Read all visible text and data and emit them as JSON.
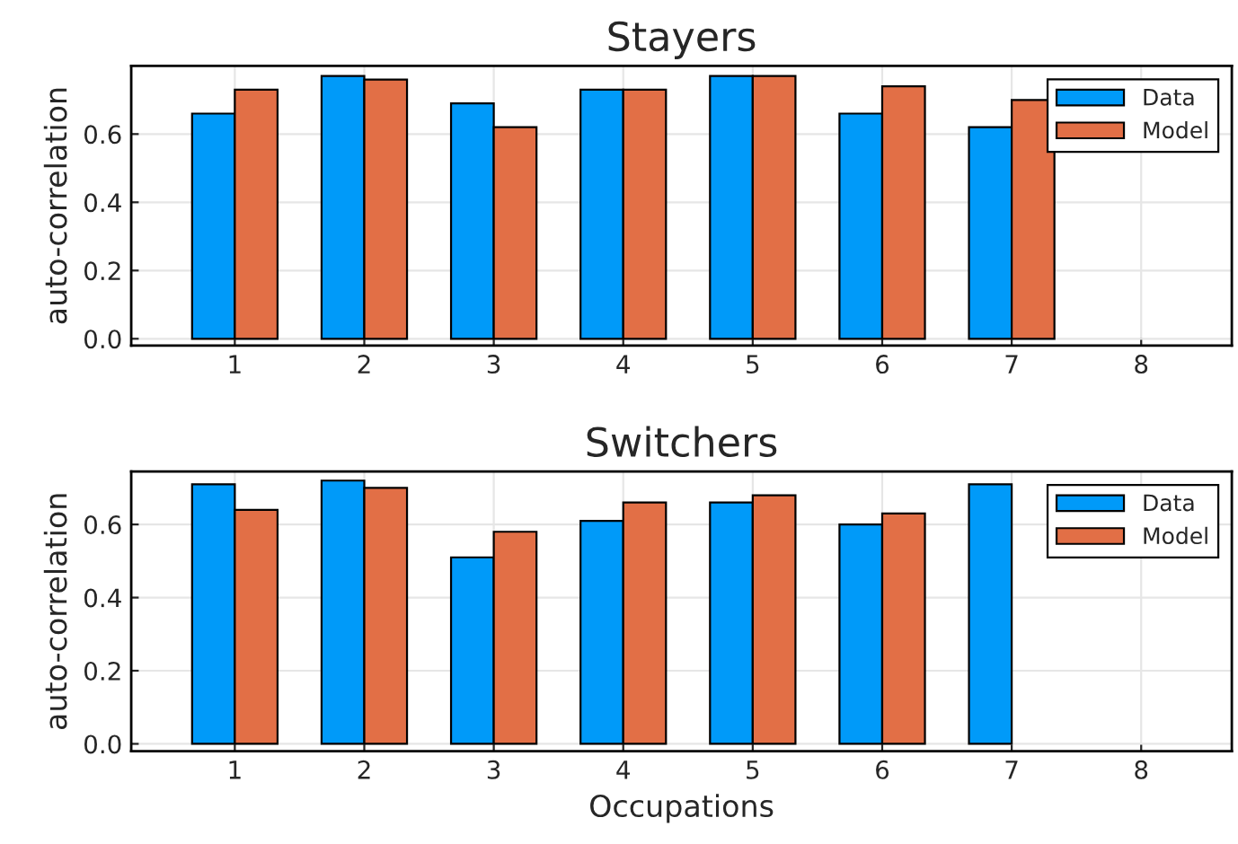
{
  "chart_data": [
    {
      "type": "bar",
      "title": "Stayers",
      "ylabel": "auto-correlation",
      "categories": [
        "1",
        "2",
        "3",
        "4",
        "5",
        "6",
        "7",
        "8"
      ],
      "series": [
        {
          "name": "Data",
          "color": "#009af9",
          "values": [
            0.66,
            0.77,
            0.69,
            0.73,
            0.77,
            0.66,
            0.62,
            null
          ]
        },
        {
          "name": "Model",
          "color": "#e26f46",
          "values": [
            0.73,
            0.76,
            0.62,
            0.73,
            0.77,
            0.74,
            0.7,
            null
          ]
        }
      ],
      "ylim": [
        -0.02,
        0.8
      ],
      "yticks": [
        {
          "value": 0,
          "label": "0.0"
        },
        0.2,
        0.4,
        0.6
      ],
      "grid": true,
      "legend": "top right"
    },
    {
      "type": "bar",
      "title": "Switchers",
      "ylabel": "auto-correlation",
      "xlabel": "Occupations",
      "categories": [
        "1",
        "2",
        "3",
        "4",
        "5",
        "6",
        "7",
        "8"
      ],
      "series": [
        {
          "name": "Data",
          "color": "#009af9",
          "values": [
            0.71,
            0.72,
            0.51,
            0.61,
            0.66,
            0.6,
            0.71,
            null
          ]
        },
        {
          "name": "Model",
          "color": "#e26f46",
          "values": [
            0.64,
            0.7,
            0.58,
            0.66,
            0.68,
            0.63,
            null,
            null
          ]
        }
      ],
      "ylim": [
        -0.02,
        0.745
      ],
      "yticks": [
        {
          "value": 0,
          "label": "0.0"
        },
        0.2,
        0.4,
        0.6
      ],
      "grid": true,
      "legend": "top right"
    }
  ]
}
